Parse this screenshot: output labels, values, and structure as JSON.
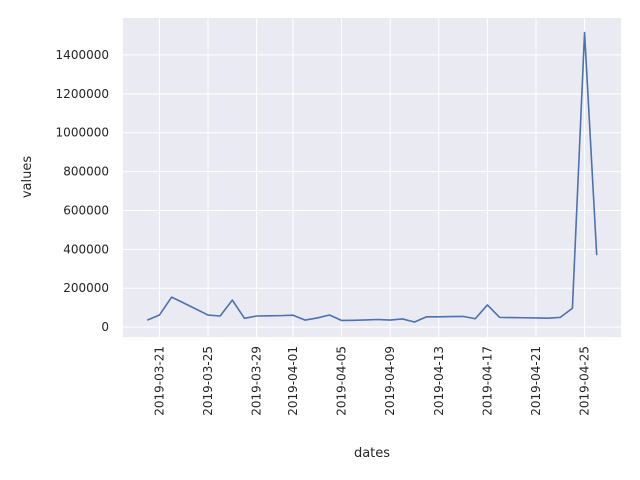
{
  "chart_data": {
    "type": "line",
    "xlabel": "dates",
    "ylabel": "values",
    "color": "#4c72b0",
    "grid": true,
    "x": [
      "2019-03-20",
      "2019-03-21",
      "2019-03-22",
      "2019-03-23",
      "2019-03-24",
      "2019-03-25",
      "2019-03-26",
      "2019-03-27",
      "2019-03-28",
      "2019-03-29",
      "2019-03-30",
      "2019-03-31",
      "2019-04-01",
      "2019-04-02",
      "2019-04-03",
      "2019-04-04",
      "2019-04-05",
      "2019-04-06",
      "2019-04-07",
      "2019-04-08",
      "2019-04-09",
      "2019-04-10",
      "2019-04-11",
      "2019-04-12",
      "2019-04-13",
      "2019-04-14",
      "2019-04-15",
      "2019-04-16",
      "2019-04-17",
      "2019-04-18",
      "2019-04-19",
      "2019-04-20",
      "2019-04-21",
      "2019-04-22",
      "2019-04-23",
      "2019-04-24",
      "2019-04-25",
      "2019-04-26"
    ],
    "values": [
      36000,
      62000,
      154000,
      124000,
      93000,
      62000,
      57000,
      139000,
      45000,
      57000,
      58000,
      59000,
      61000,
      36000,
      47000,
      62000,
      34000,
      35000,
      37000,
      39000,
      36000,
      42000,
      26000,
      53000,
      53000,
      54000,
      55000,
      43000,
      114000,
      50000,
      49000,
      48000,
      47000,
      46000,
      50000,
      97000,
      1515000,
      370000
    ],
    "xlim": [
      "2019-03-18",
      "2019-04-28"
    ],
    "xticks": [
      "2019-03-21",
      "2019-03-25",
      "2019-03-29",
      "2019-04-01",
      "2019-04-05",
      "2019-04-09",
      "2019-04-13",
      "2019-04-17",
      "2019-04-21",
      "2019-04-25"
    ],
    "ylim": [
      -51000,
      1590000
    ],
    "yticks": [
      0,
      200000,
      400000,
      600000,
      800000,
      1000000,
      1200000,
      1400000
    ]
  }
}
